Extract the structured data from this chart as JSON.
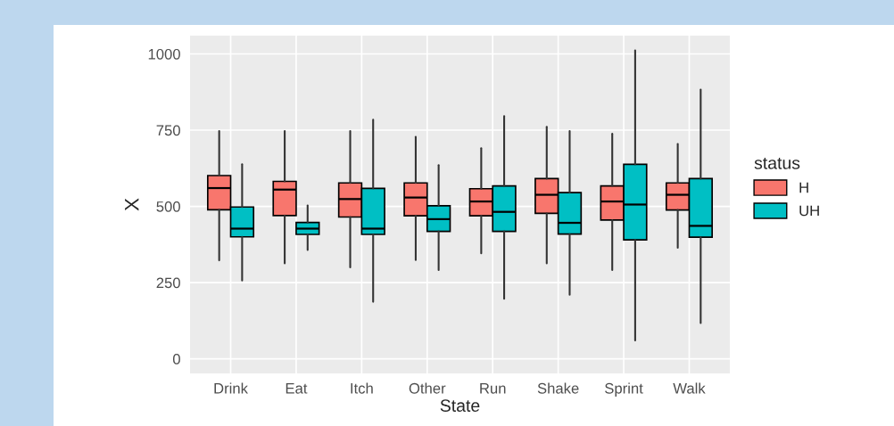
{
  "chart_data": {
    "type": "box",
    "xlabel": "State",
    "ylabel": "X",
    "legend_title": "status",
    "categories": [
      "Drink",
      "Eat",
      "Itch",
      "Other",
      "Run",
      "Shake",
      "Sprint",
      "Walk"
    ],
    "ylim": [
      -48,
      1060
    ],
    "yticks": [
      0,
      250,
      500,
      750,
      1000
    ],
    "grid": true,
    "legend": "right",
    "series": [
      {
        "name": "H",
        "color": "#f8766d",
        "boxes": [
          {
            "low": 323,
            "q1": 489,
            "median": 560,
            "q3": 601,
            "high": 747
          },
          {
            "low": 313,
            "q1": 470,
            "median": 555,
            "q3": 582,
            "high": 747
          },
          {
            "low": 300,
            "q1": 465,
            "median": 524,
            "q3": 577,
            "high": 747
          },
          {
            "low": 324,
            "q1": 469,
            "median": 529,
            "q3": 577,
            "high": 728
          },
          {
            "low": 346,
            "q1": 469,
            "median": 516,
            "q3": 558,
            "high": 691
          },
          {
            "low": 313,
            "q1": 477,
            "median": 538,
            "q3": 591,
            "high": 761
          },
          {
            "low": 291,
            "q1": 455,
            "median": 516,
            "q3": 567,
            "high": 738
          },
          {
            "low": 364,
            "q1": 488,
            "median": 538,
            "q3": 577,
            "high": 705
          }
        ]
      },
      {
        "name": "UH",
        "color": "#00bfc4",
        "boxes": [
          {
            "low": 257,
            "q1": 400,
            "median": 427,
            "q3": 498,
            "high": 638
          },
          {
            "low": 357,
            "q1": 408,
            "median": 427,
            "q3": 447,
            "high": 503
          },
          {
            "low": 187,
            "q1": 408,
            "median": 427,
            "q3": 559,
            "high": 784
          },
          {
            "low": 291,
            "q1": 418,
            "median": 458,
            "q3": 502,
            "high": 635
          },
          {
            "low": 197,
            "q1": 418,
            "median": 482,
            "q3": 567,
            "high": 796
          },
          {
            "low": 210,
            "q1": 409,
            "median": 446,
            "q3": 545,
            "high": 747
          },
          {
            "low": 60,
            "q1": 390,
            "median": 506,
            "q3": 638,
            "high": 1012
          },
          {
            "low": 117,
            "q1": 399,
            "median": 436,
            "q3": 591,
            "high": 883
          }
        ]
      }
    ]
  }
}
